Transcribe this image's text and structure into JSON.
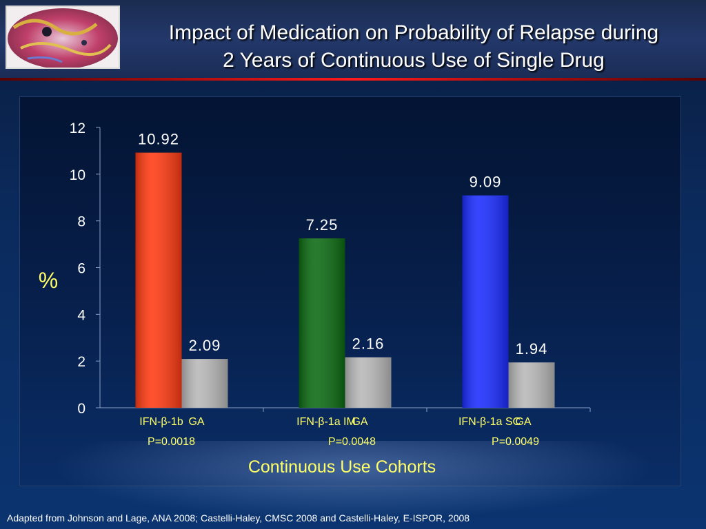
{
  "title_line1": "Impact of Medication on Probability of Relapse during",
  "title_line2": "2 Years of Continuous Use of Single Drug",
  "footer": "Adapted from Johnson and Lage, ANA 2008; Castelli-Haley, CMSC 2008 and Castelli-Haley, E-ISPOR, 2008",
  "chart_data": {
    "type": "bar",
    "ylabel": "%",
    "xlabel": "Continuous Use Cohorts",
    "ylim": [
      0,
      12
    ],
    "yticks": [
      0,
      2,
      4,
      6,
      8,
      10,
      12
    ],
    "value_label_color": "#ffffff",
    "groups": [
      {
        "bars": [
          {
            "label": "IFN-β-1b",
            "value": 10.92,
            "value_label": "10.92",
            "color": "#ff3a12"
          },
          {
            "label": "GA",
            "value": 2.09,
            "value_label": "2.09",
            "color": "#b8b8b8"
          }
        ],
        "pvalue": "P=0.0018"
      },
      {
        "bars": [
          {
            "label": "IFN-β-1a IM",
            "value": 7.25,
            "value_label": "7.25",
            "color": "#0b6a12"
          },
          {
            "label": "GA",
            "value": 2.16,
            "value_label": "2.16",
            "color": "#b8b8b8"
          }
        ],
        "pvalue": "P=0.0048"
      },
      {
        "bars": [
          {
            "label": "IFN-β-1a SC",
            "value": 9.09,
            "value_label": "9.09",
            "color": "#1a2cff"
          },
          {
            "label": "GA",
            "value": 1.94,
            "value_label": "1.94",
            "color": "#b8b8b8"
          }
        ],
        "pvalue": "P=0.0049"
      }
    ]
  }
}
